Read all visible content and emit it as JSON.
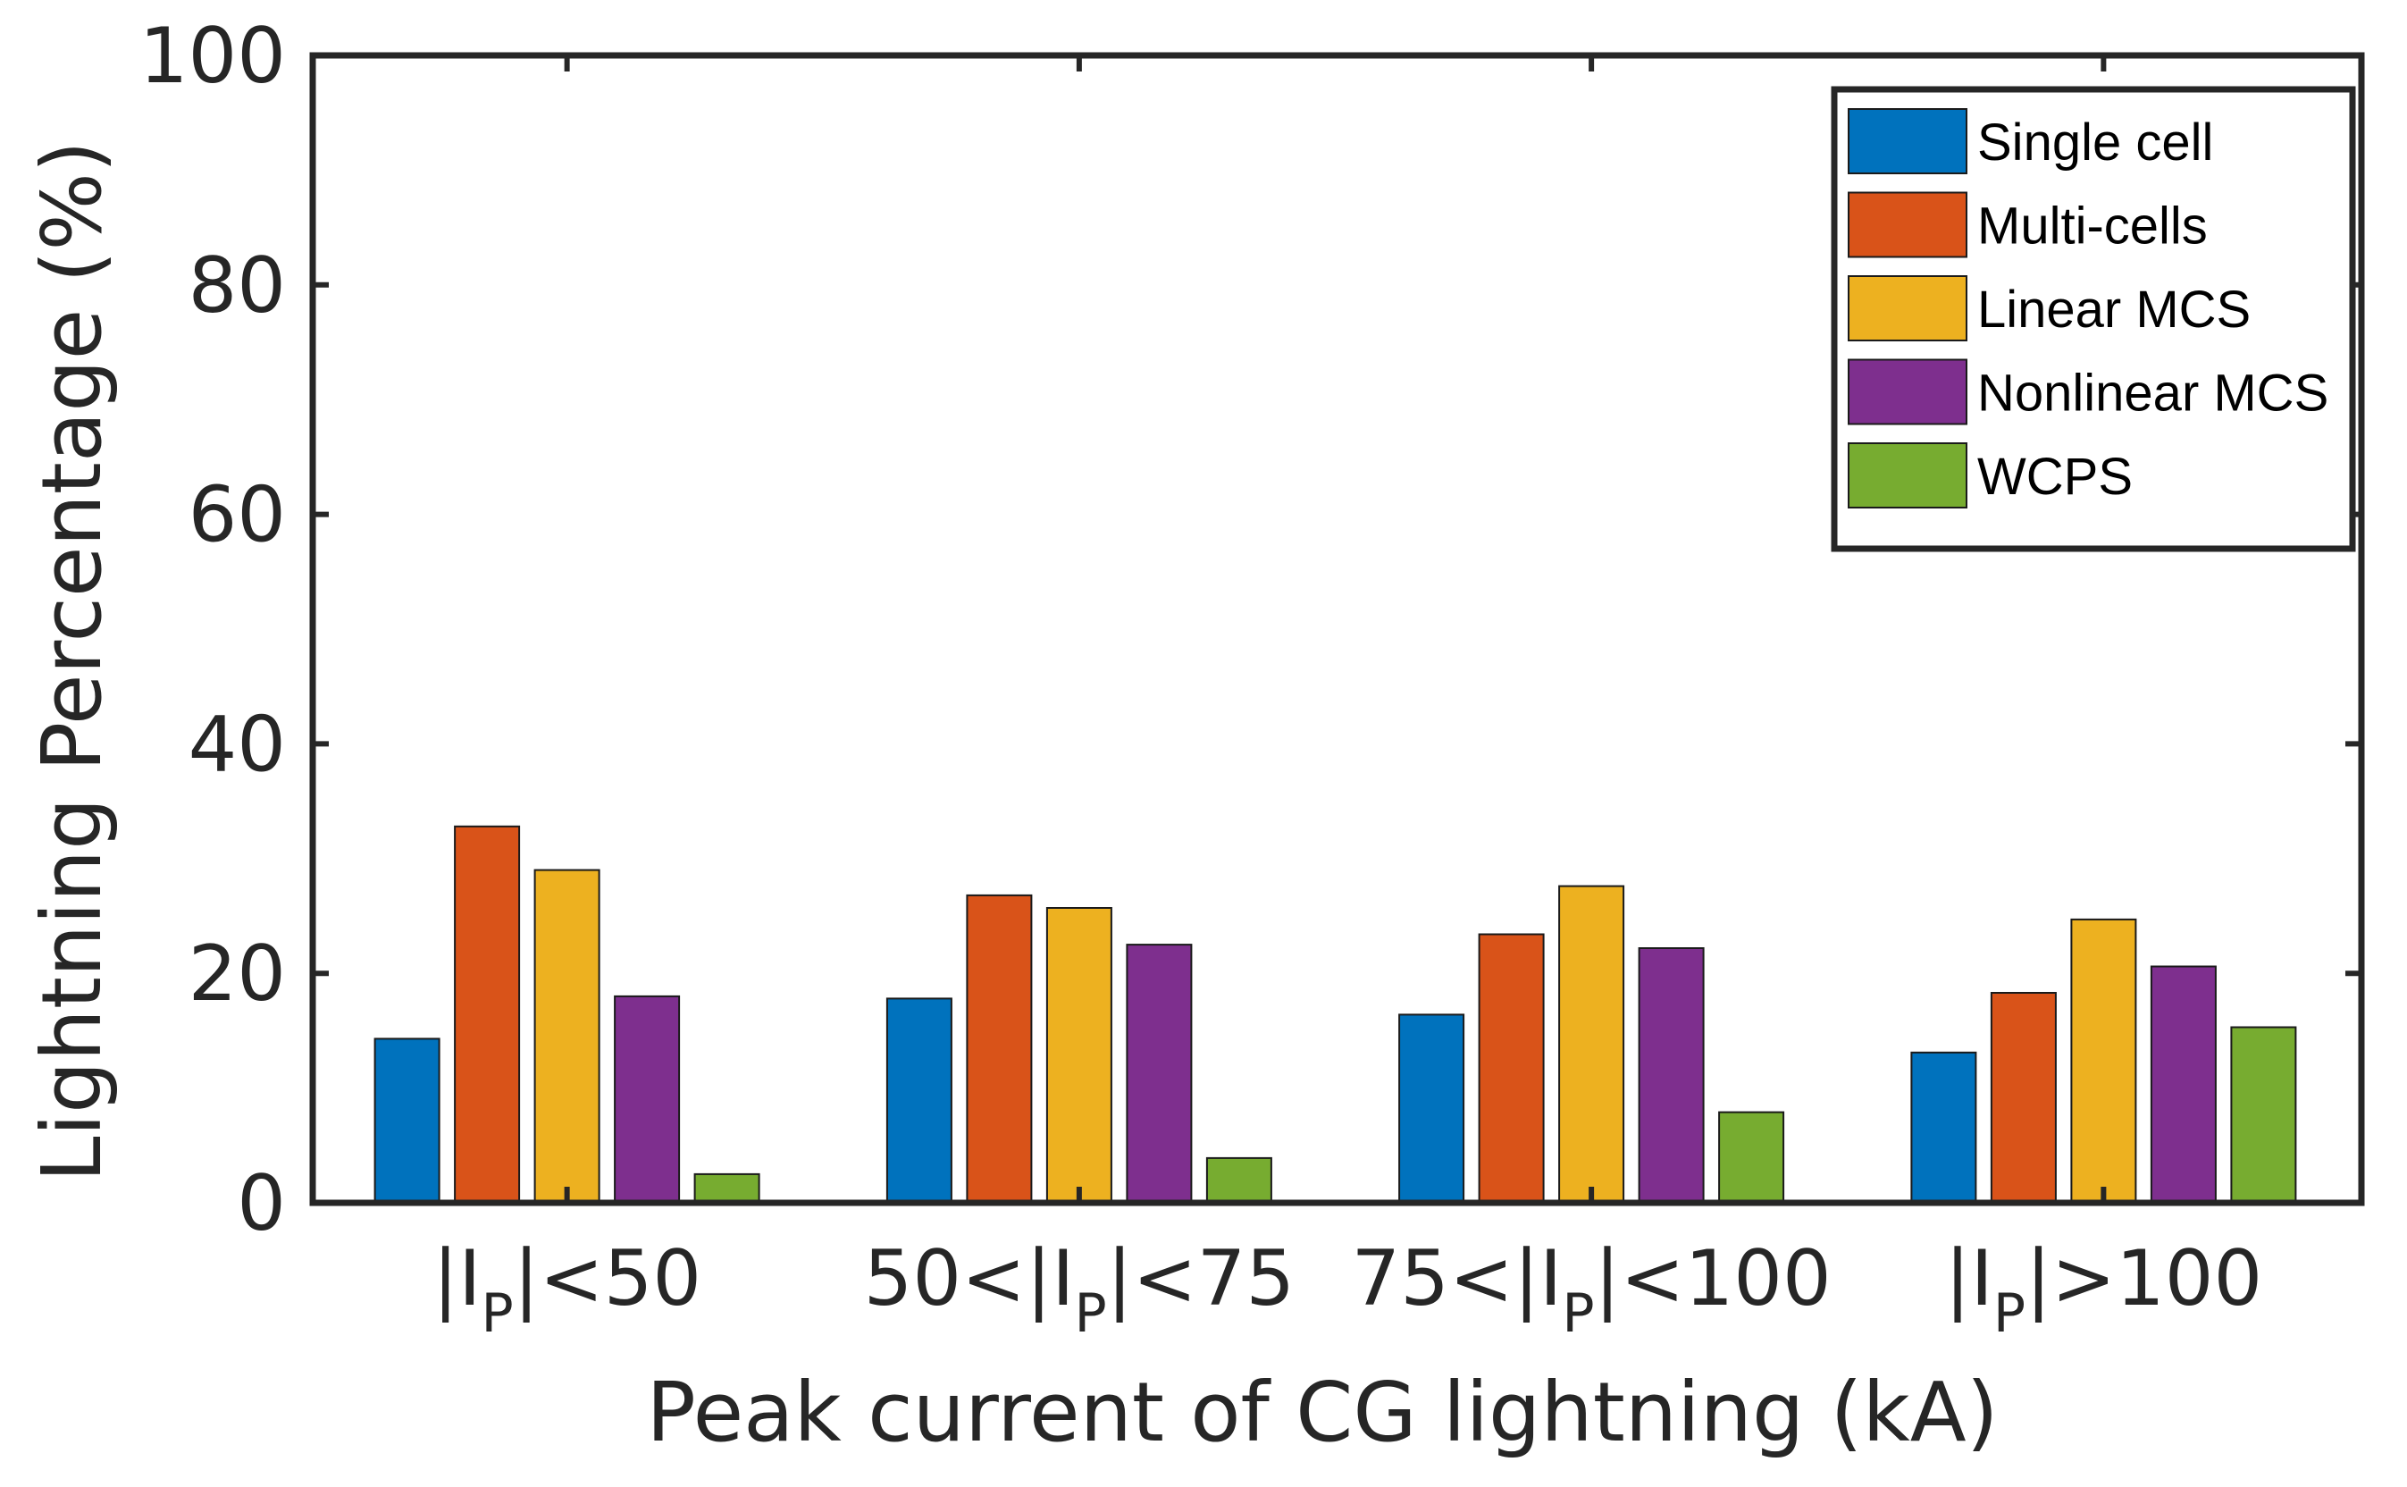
{
  "chart_data": {
    "type": "bar",
    "title": "",
    "xlabel": "Peak current of CG lightning (kA)",
    "ylabel": "Lightning Percentage (%)",
    "ylim": [
      0,
      100
    ],
    "yticks": [
      0,
      20,
      40,
      60,
      80,
      100
    ],
    "grid": false,
    "legend_position": "top-right",
    "categories": [
      {
        "pre": "|I",
        "sub": "P",
        "post": "|<50"
      },
      {
        "pre": "50<|I",
        "sub": "P",
        "post": "|<75"
      },
      {
        "pre": "75<|I",
        "sub": "P",
        "post": "|<100"
      },
      {
        "pre": "|I",
        "sub": "P",
        "post": "|>100"
      }
    ],
    "series": [
      {
        "name": "Single cell",
        "color": "#0072BD",
        "values": [
          14.3,
          17.8,
          16.4,
          13.1
        ]
      },
      {
        "name": "Multi-cells",
        "color": "#D95319",
        "values": [
          32.8,
          26.8,
          23.4,
          18.3
        ]
      },
      {
        "name": "Linear MCS",
        "color": "#EDB120",
        "values": [
          29.0,
          25.7,
          27.6,
          24.7
        ]
      },
      {
        "name": "Nonlinear MCS",
        "color": "#7E2F8E",
        "values": [
          18.0,
          22.5,
          22.2,
          20.6
        ]
      },
      {
        "name": "WCPS",
        "color": "#77AC30",
        "values": [
          2.5,
          3.9,
          7.9,
          15.3
        ]
      }
    ]
  }
}
